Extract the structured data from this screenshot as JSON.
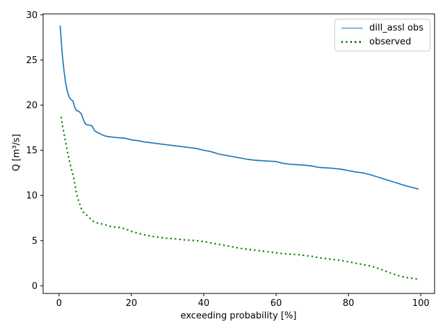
{
  "chart_data": {
    "type": "line",
    "title": "",
    "xlabel": "exceeding probability [%]",
    "ylabel": "Q [m³/s]",
    "xticks": [
      0,
      20,
      40,
      60,
      80,
      100
    ],
    "yticks": [
      0,
      5,
      10,
      15,
      20,
      25,
      30
    ],
    "xlim": [
      -4.4,
      103.8
    ],
    "ylim": [
      -0.85,
      30.1
    ],
    "grid": false,
    "legend_position": "upper right",
    "background_color": "#ffffff",
    "series": [
      {
        "name": "dill_assl obs",
        "color": "#1f77b4",
        "linestyle": "solid",
        "x": [
          0.3,
          0.8,
          1.3,
          1.8,
          2.3,
          2.8,
          3.3,
          3.8,
          4.3,
          4.8,
          5.5,
          6.2,
          6.7,
          7.3,
          8,
          9,
          10,
          11,
          12,
          13,
          14,
          15,
          16,
          18,
          20,
          22,
          24,
          26,
          28,
          30,
          32,
          34,
          36,
          38,
          40,
          42,
          44,
          46,
          48,
          50,
          52,
          54,
          56,
          58,
          60,
          62,
          64,
          66,
          68,
          70,
          72,
          74,
          76,
          78,
          80,
          82,
          84,
          86,
          88,
          90,
          92,
          94,
          96,
          98,
          99.4
        ],
        "y": [
          28.8,
          26.0,
          24.0,
          22.5,
          21.5,
          20.9,
          20.6,
          20.5,
          19.8,
          19.4,
          19.3,
          19.0,
          18.4,
          17.9,
          17.8,
          17.75,
          17.1,
          16.9,
          16.7,
          16.55,
          16.5,
          16.45,
          16.4,
          16.35,
          16.15,
          16.05,
          15.9,
          15.8,
          15.7,
          15.6,
          15.5,
          15.4,
          15.3,
          15.2,
          15.0,
          14.85,
          14.6,
          14.45,
          14.3,
          14.15,
          14.0,
          13.9,
          13.85,
          13.8,
          13.75,
          13.55,
          13.45,
          13.4,
          13.35,
          13.25,
          13.1,
          13.05,
          13.0,
          12.9,
          12.75,
          12.6,
          12.5,
          12.3,
          12.05,
          11.8,
          11.55,
          11.3,
          11.05,
          10.85,
          10.7
        ]
      },
      {
        "name": "observed",
        "color": "#008000",
        "linestyle": "dotted",
        "x": [
          0.6,
          1.0,
          1.5,
          2.0,
          2.5,
          3.0,
          3.5,
          4.0,
          4.4,
          4.8,
          5.4,
          6.2,
          7.0,
          7.7,
          8.5,
          9.2,
          10.2,
          11.2,
          12.5,
          13.8,
          15.4,
          16.9,
          18.3,
          20.2,
          22,
          24,
          26,
          28,
          30,
          32,
          34,
          36,
          38,
          40,
          42,
          44,
          46,
          48,
          50,
          52,
          54,
          56,
          58,
          60,
          62,
          64,
          66,
          68,
          70,
          72,
          74,
          76,
          78,
          80,
          82,
          84,
          86,
          88,
          90,
          92,
          94,
          96,
          98,
          99
        ],
        "y": [
          18.7,
          17.6,
          16.6,
          15.5,
          14.5,
          13.6,
          12.8,
          12.1,
          11.2,
          10.2,
          9.4,
          8.5,
          8.0,
          7.8,
          7.5,
          7.2,
          7.0,
          6.9,
          6.8,
          6.6,
          6.5,
          6.45,
          6.3,
          6.0,
          5.8,
          5.6,
          5.45,
          5.35,
          5.25,
          5.2,
          5.1,
          5.05,
          5.0,
          4.9,
          4.75,
          4.6,
          4.45,
          4.3,
          4.15,
          4.05,
          3.95,
          3.85,
          3.75,
          3.65,
          3.55,
          3.5,
          3.45,
          3.35,
          3.25,
          3.1,
          3.0,
          2.9,
          2.8,
          2.65,
          2.5,
          2.35,
          2.2,
          1.95,
          1.65,
          1.35,
          1.1,
          0.92,
          0.8,
          0.75
        ]
      }
    ]
  }
}
